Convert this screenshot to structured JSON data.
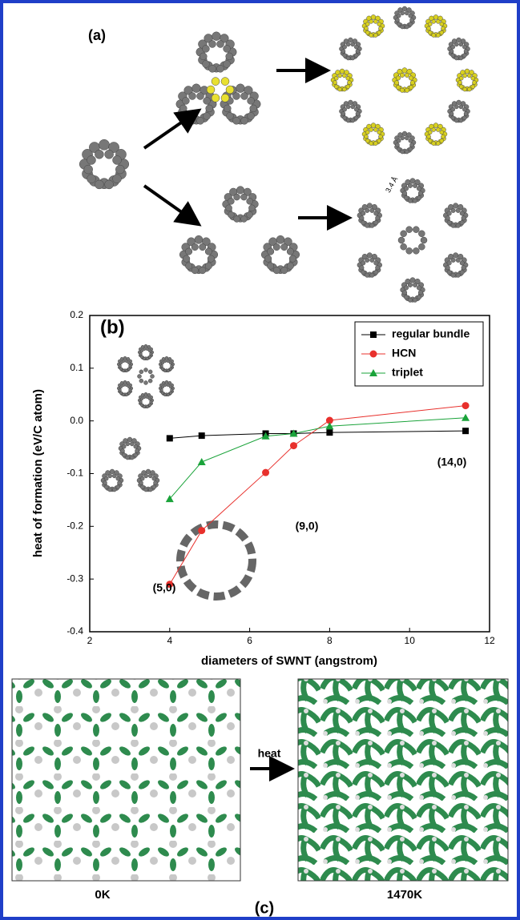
{
  "panel_labels": {
    "a": "(a)",
    "c": "(c)"
  },
  "spacing_label": "3.4 Å",
  "arrow_label": "heat",
  "temperatures": [
    "0K",
    "1470K"
  ],
  "chart_data": {
    "type": "line",
    "panel_label": "(b)",
    "x_label": "diameters of SWNT (angstrom)",
    "y_label": "heat of formation (eV/C atom)",
    "x": [
      4,
      4.8,
      6.4,
      7.1,
      8,
      11.4
    ],
    "series": [
      {
        "name": "regular bundle",
        "color": "#000000",
        "marker": "square",
        "values": [
          -0.033,
          -0.028,
          -0.024,
          -0.024,
          -0.022,
          -0.019
        ]
      },
      {
        "name": "HCN",
        "color": "#e8302c",
        "marker": "circle",
        "values": [
          -0.31,
          -0.208,
          -0.098,
          -0.047,
          0.001,
          0.029
        ]
      },
      {
        "name": "triplet",
        "color": "#1aa33a",
        "marker": "triangle",
        "values": [
          -0.148,
          -0.078,
          -0.029,
          -0.024,
          -0.01,
          0.006
        ]
      }
    ],
    "xlim": [
      2,
      12
    ],
    "xticks": [
      2,
      4,
      6,
      8,
      10,
      12
    ],
    "ylim": [
      -0.4,
      0.2
    ],
    "yticks": [
      -0.4,
      -0.3,
      -0.2,
      -0.1,
      {
        "value": 0,
        "label": "0.0"
      },
      0.1,
      0.2
    ],
    "annotations": [
      "(5,0)",
      "(9,0)",
      "(14,0)"
    ],
    "legend": "upper right"
  }
}
